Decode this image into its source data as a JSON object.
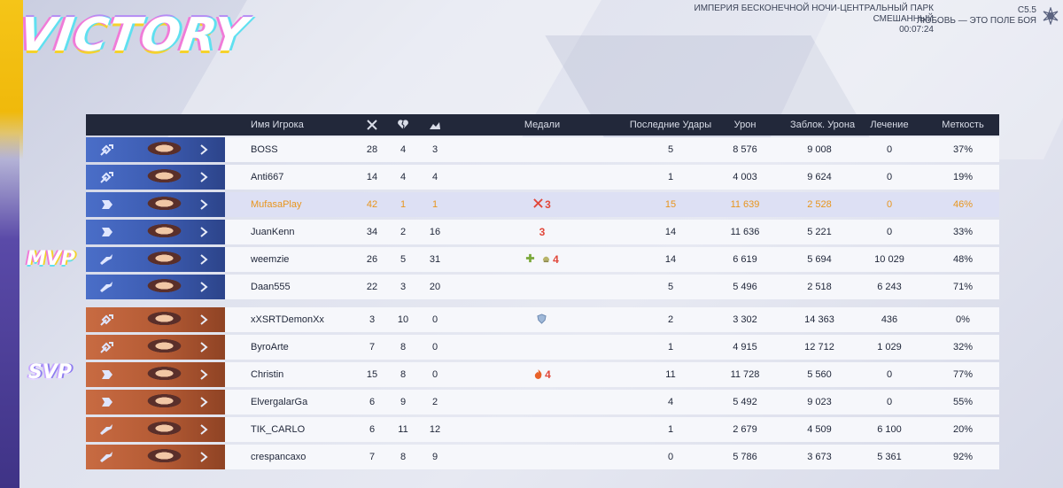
{
  "screen": {
    "title": "VICTORY",
    "mvp_label": "MVP",
    "svp_label": "SVP"
  },
  "match": {
    "map": "ИМПЕРИЯ БЕСКОНЕЧНОЙ НОЧИ-ЦЕНТРАЛЬНЫЙ ПАРК",
    "mode": "СМЕШАННЫЙ",
    "duration": "00:07:24",
    "season": "C5.5",
    "season_name": "ЛЮБОВЬ — ЭТО ПОЛЕ БОЯ"
  },
  "headers": {
    "player_name": "Имя Игрока",
    "kills_icon": "crossed-swords-icon",
    "deaths_icon": "broken-heart-icon",
    "assists_icon": "handshake-icon",
    "medals": "Медали",
    "final_hits": "Последние Удары",
    "damage": "Урон",
    "damage_blocked": "Заблок. Урона",
    "healing": "Лечение",
    "accuracy": "Меткость"
  },
  "colors": {
    "blue_team": "#3c5bb0",
    "orange_team": "#b35a34",
    "highlight_text": "#e8951d",
    "header_bg": "#22283a"
  },
  "blue_team": [
    {
      "name": "BOSS",
      "role": "strategist",
      "k": "28",
      "d": "4",
      "a": "3",
      "medals": [],
      "final_hits": "5",
      "damage": "8 576",
      "blocked": "9 008",
      "healing": "0",
      "accuracy": "37%"
    },
    {
      "name": "Anti667",
      "role": "strategist",
      "k": "14",
      "d": "4",
      "a": "4",
      "medals": [],
      "final_hits": "1",
      "damage": "4 003",
      "blocked": "9 624",
      "healing": "0",
      "accuracy": "19%"
    },
    {
      "name": "MufasaPlay",
      "role": "vanguard",
      "k": "42",
      "d": "1",
      "a": "1",
      "medals": [
        {
          "icon": "crossed-swords-medal-icon",
          "count": "3"
        }
      ],
      "final_hits": "15",
      "damage": "11 639",
      "blocked": "2 528",
      "healing": "0",
      "accuracy": "46%",
      "highlight": true
    },
    {
      "name": "JuanKenn",
      "role": "vanguard",
      "k": "34",
      "d": "2",
      "a": "16",
      "medals": [
        {
          "icon": "",
          "count": "3"
        }
      ],
      "final_hits": "14",
      "damage": "11 636",
      "blocked": "5 221",
      "healing": "0",
      "accuracy": "33%"
    },
    {
      "name": "weemzie",
      "role": "duelist",
      "k": "26",
      "d": "5",
      "a": "31",
      "medals": [
        {
          "icon": "plus-medal-icon",
          "count": ""
        },
        {
          "icon": "helmet-medal-icon",
          "count": "4"
        }
      ],
      "final_hits": "14",
      "damage": "6 619",
      "blocked": "5 694",
      "healing": "10 029",
      "accuracy": "48%"
    },
    {
      "name": "Daan555",
      "role": "duelist",
      "k": "22",
      "d": "3",
      "a": "20",
      "medals": [],
      "final_hits": "5",
      "damage": "5 496",
      "blocked": "2 518",
      "healing": "6 243",
      "accuracy": "71%"
    }
  ],
  "orange_team": [
    {
      "name": "xXSRTDemonXx",
      "role": "strategist",
      "k": "3",
      "d": "10",
      "a": "0",
      "medals": [
        {
          "icon": "shield-medal-icon",
          "count": ""
        }
      ],
      "final_hits": "2",
      "damage": "3 302",
      "blocked": "14 363",
      "healing": "436",
      "accuracy": "0%"
    },
    {
      "name": "ByroArte",
      "role": "strategist",
      "k": "7",
      "d": "8",
      "a": "0",
      "medals": [],
      "final_hits": "1",
      "damage": "4 915",
      "blocked": "12 712",
      "healing": "1 029",
      "accuracy": "32%"
    },
    {
      "name": "Christin",
      "role": "vanguard",
      "k": "15",
      "d": "8",
      "a": "0",
      "medals": [
        {
          "icon": "flame-medal-icon",
          "count": "4"
        }
      ],
      "final_hits": "11",
      "damage": "11 728",
      "blocked": "5 560",
      "healing": "0",
      "accuracy": "77%"
    },
    {
      "name": "ElvergalarGa",
      "role": "vanguard",
      "k": "6",
      "d": "9",
      "a": "2",
      "medals": [],
      "final_hits": "4",
      "damage": "5 492",
      "blocked": "9 023",
      "healing": "0",
      "accuracy": "55%"
    },
    {
      "name": "TIK_CARLO",
      "role": "duelist",
      "k": "6",
      "d": "11",
      "a": "12",
      "medals": [],
      "final_hits": "1",
      "damage": "2 679",
      "blocked": "4 509",
      "healing": "6 100",
      "accuracy": "20%"
    },
    {
      "name": "crespancaxo",
      "role": "duelist",
      "k": "7",
      "d": "8",
      "a": "9",
      "medals": [],
      "final_hits": "0",
      "damage": "5 786",
      "blocked": "3 673",
      "healing": "5 361",
      "accuracy": "92%"
    }
  ]
}
